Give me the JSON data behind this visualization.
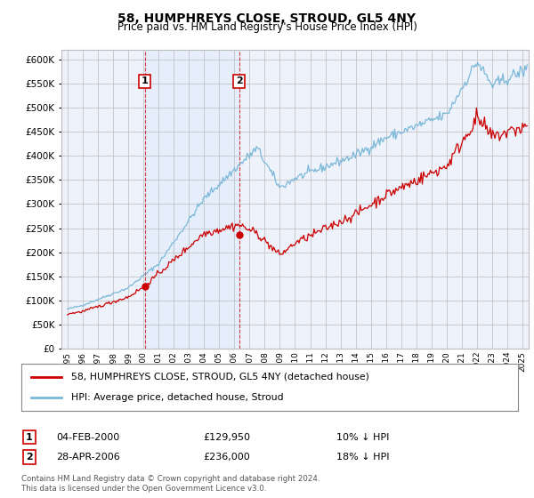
{
  "title": "58, HUMPHREYS CLOSE, STROUD, GL5 4NY",
  "subtitle": "Price paid vs. HM Land Registry's House Price Index (HPI)",
  "legend_line1": "58, HUMPHREYS CLOSE, STROUD, GL5 4NY (detached house)",
  "legend_line2": "HPI: Average price, detached house, Stroud",
  "footnote1": "Contains HM Land Registry data © Crown copyright and database right 2024.",
  "footnote2": "This data is licensed under the Open Government Licence v3.0.",
  "sale1_date": "04-FEB-2000",
  "sale1_price": "£129,950",
  "sale1_hpi": "10% ↓ HPI",
  "sale1_label": "1",
  "sale1_year": 2000.09,
  "sale1_value": 129950,
  "sale2_date": "28-APR-2006",
  "sale2_price": "£236,000",
  "sale2_hpi": "18% ↓ HPI",
  "sale2_label": "2",
  "sale2_year": 2006.32,
  "sale2_value": 236000,
  "hpi_color": "#7ab8d9",
  "price_color": "#cc0000",
  "vline_color": "#cc0000",
  "ylim": [
    0,
    620000
  ],
  "yticks": [
    0,
    50000,
    100000,
    150000,
    200000,
    250000,
    300000,
    350000,
    400000,
    450000,
    500000,
    550000,
    600000
  ],
  "background_color": "#ffffff",
  "plot_bg_color": "#eef2fb",
  "grid_color": "#bbbbbb",
  "xlim_left": 1994.6,
  "xlim_right": 2025.4
}
